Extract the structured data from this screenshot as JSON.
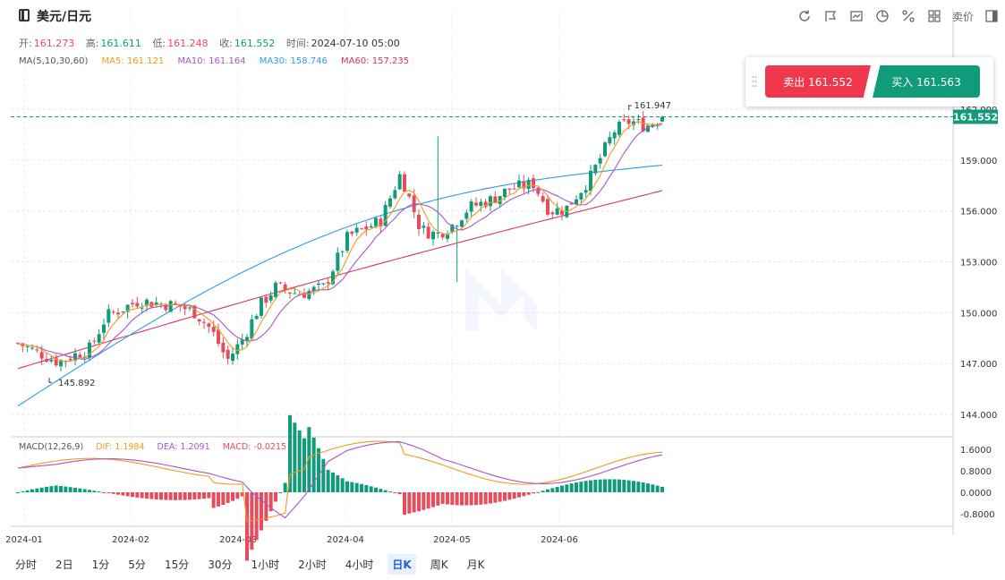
{
  "header": {
    "symbol": "美元/日元",
    "tools": [
      "refresh-icon",
      "draw-icon",
      "chart-type-icon",
      "pie-icon",
      "percent-icon",
      "layout-icon",
      "sell-price-label",
      "panel-icon"
    ],
    "sell_price_label": "卖价"
  },
  "ohlc": {
    "open_label": "开:",
    "open": "161.273",
    "high_label": "高:",
    "high": "161.611",
    "low_label": "低:",
    "low": "161.248",
    "close_label": "收:",
    "close": "161.552",
    "time_label": "时间:",
    "time": "2024-07-10 05:00"
  },
  "ma": {
    "label": "MA(5,10,30,60)",
    "ma5": "MA5: 161.121",
    "ma10": "MA10: 161.164",
    "ma30": "MA30: 158.746",
    "ma60": "MA60: 157.235",
    "colors": {
      "ma5": "#f29a1f",
      "ma10": "#a855c8",
      "ma30": "#2e9be6",
      "ma60": "#d6336c"
    }
  },
  "trade": {
    "sell_label": "卖出 161.552",
    "buy_label": "买入 161.563"
  },
  "macd": {
    "label": "MACD(12,26,9)",
    "dif": "DIF: 1.1984",
    "dea": "DEA: 1.2091",
    "macd": "MACD: -0.0215",
    "colors": {
      "dif": "#f29a1f",
      "dea": "#a855c8",
      "macd": "#e74c5c"
    }
  },
  "chart_data": {
    "type": "candlestick",
    "y_ticks": [
      "162.000",
      "159.000",
      "156.000",
      "153.000",
      "150.000",
      "147.000",
      "144.000"
    ],
    "x_ticks": [
      "2024-01",
      "2024-02",
      "2024-03",
      "2024-04",
      "2024-05",
      "2024-06"
    ],
    "macd_ticks": [
      "1.6000",
      "0.8000",
      "0.0000",
      "-0.8000"
    ],
    "last_price": "161.552",
    "max_label": "161.947",
    "min_label": "145.892",
    "colors": {
      "up": "#109c7a",
      "down": "#e74c5c"
    }
  },
  "periods": [
    "分时",
    "2日",
    "1分",
    "5分",
    "15分",
    "30分",
    "1小时",
    "2小时",
    "4小时",
    "日K",
    "周K",
    "月K"
  ],
  "active_period": "日K"
}
